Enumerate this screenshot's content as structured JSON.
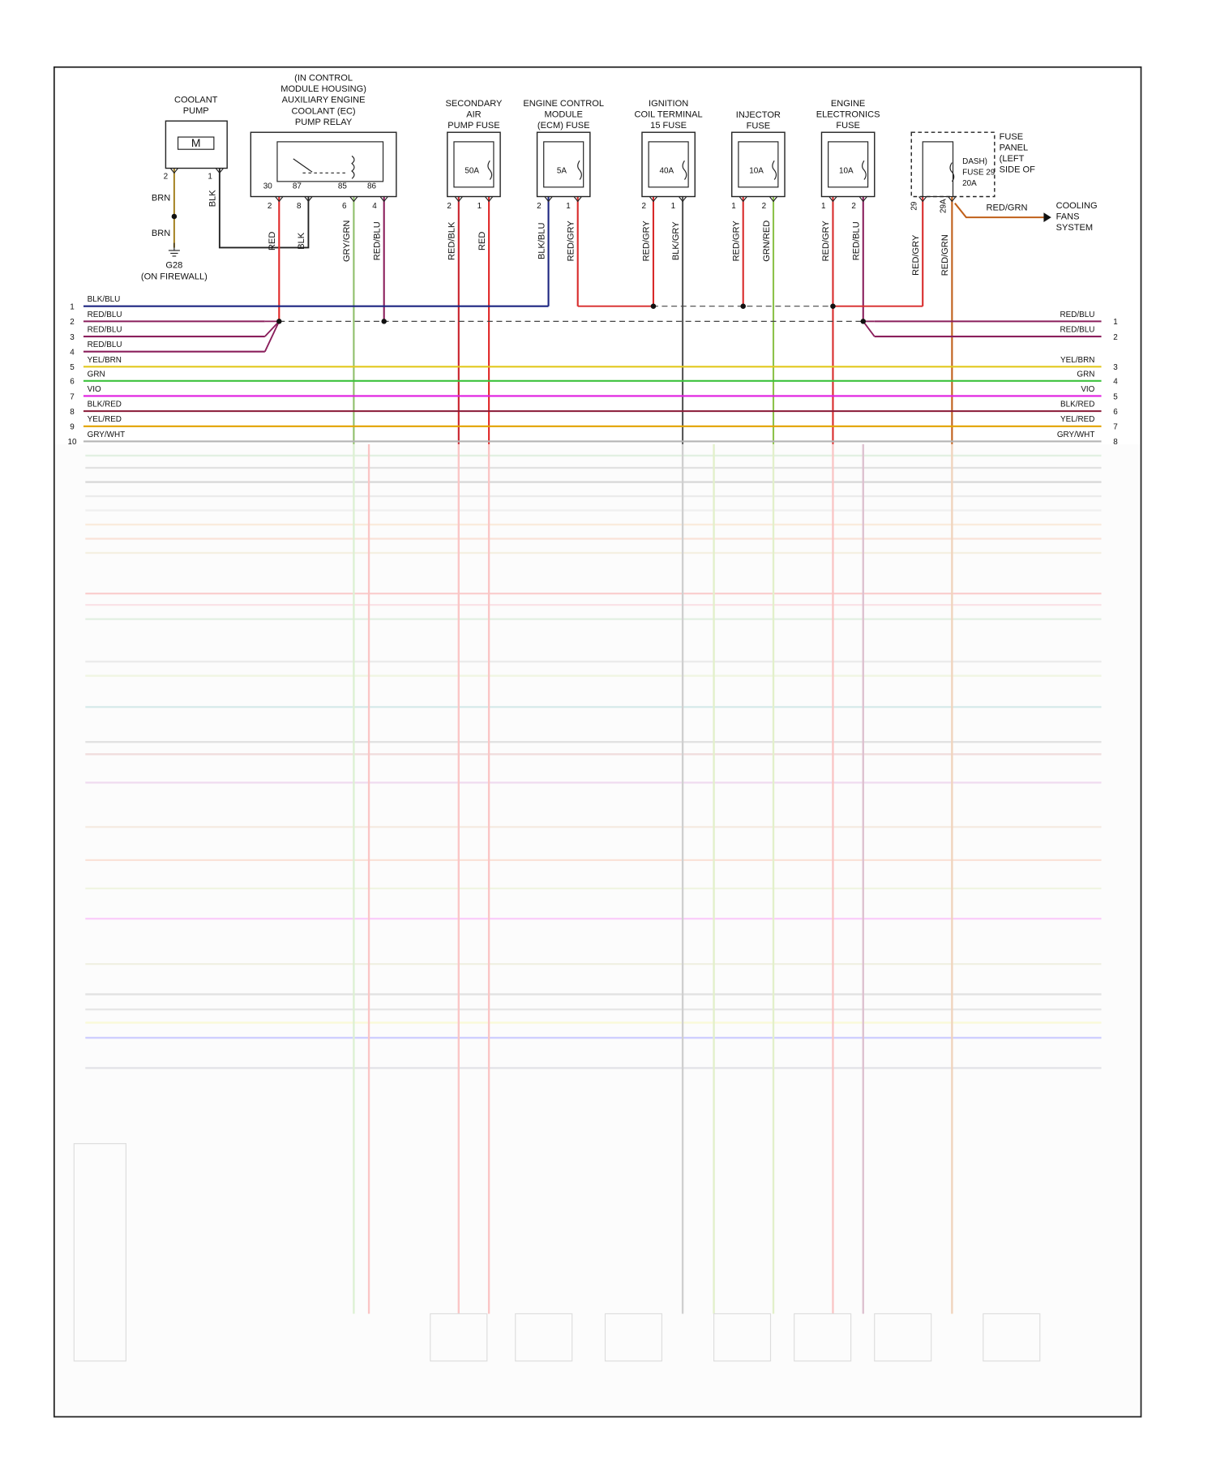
{
  "components": [
    {
      "title": [
        "COOLANT",
        "PUMP"
      ],
      "symbol": "M",
      "pins": [
        "2",
        "1"
      ],
      "wires": [
        {
          "label": "BRN",
          "color": "#a8862a"
        },
        {
          "label": "BLK",
          "color": "#222222"
        }
      ],
      "extra_label": "BRN",
      "ground": [
        "G28",
        "(ON FIREWALL)"
      ]
    },
    {
      "title": [
        "(IN CONTROL",
        "MODULE HOUSING)",
        "AUXILIARY ENGINE",
        "COOLANT (EC)",
        "PUMP RELAY"
      ],
      "terminals": [
        "30",
        "87",
        "85",
        "86"
      ],
      "pins": [
        "2",
        "8",
        "6",
        "4"
      ],
      "wires": [
        {
          "label": "RED",
          "color": "#e02828"
        },
        {
          "label": "BLK",
          "color": "#222222"
        },
        {
          "label": "GRY/GRN",
          "color": "#8fbf6a"
        },
        {
          "label": "RED/BLU",
          "color": "#8a1f5c"
        }
      ]
    },
    {
      "title": [
        "SECONDARY",
        "AIR",
        "PUMP FUSE"
      ],
      "rating": "50A",
      "pins": [
        "2",
        "1"
      ],
      "wires": [
        {
          "label": "RED/BLK",
          "color": "#c8202a"
        },
        {
          "label": "RED",
          "color": "#e02828"
        }
      ]
    },
    {
      "title": [
        "ENGINE CONTROL",
        "MODULE",
        "(ECM) FUSE"
      ],
      "rating": "5A",
      "pins": [
        "2",
        "1"
      ],
      "wires": [
        {
          "label": "BLK/BLU",
          "color": "#1c2580"
        },
        {
          "label": "RED/GRY",
          "color": "#d82a2a"
        }
      ]
    },
    {
      "title": [
        "IGNITION",
        "COIL TERMINAL",
        "15 FUSE"
      ],
      "rating": "40A",
      "pins": [
        "2",
        "1"
      ],
      "wires": [
        {
          "label": "RED/GRY",
          "color": "#d82a2a"
        },
        {
          "label": "BLK/GRY",
          "color": "#555555"
        }
      ]
    },
    {
      "title": [
        "INJECTOR",
        "FUSE"
      ],
      "rating": "10A",
      "pins": [
        "1",
        "2"
      ],
      "wires": [
        {
          "label": "RED/GRY",
          "color": "#d82a2a"
        },
        {
          "label": "GRN/RED",
          "color": "#8cc24a"
        }
      ]
    },
    {
      "title": [
        "ENGINE",
        "ELECTRONICS",
        "FUSE"
      ],
      "rating": "10A",
      "pins": [
        "1",
        "2"
      ],
      "wires": [
        {
          "label": "RED/GRY",
          "color": "#d82a2a"
        },
        {
          "label": "RED/BLU",
          "color": "#8a1f5c"
        }
      ]
    },
    {
      "title": [
        "FUSE",
        "PANEL",
        "(LEFT",
        "SIDE OF"
      ],
      "inner": [
        "DASH)",
        "FUSE 29",
        "20A"
      ],
      "pins": [
        "29",
        "29A"
      ],
      "wires": [
        {
          "label": "RED/GRY",
          "color": "#d82a2a"
        },
        {
          "label": "RED/GRN",
          "color": "#c0601a"
        }
      ],
      "output": {
        "label": "RED/GRN",
        "target": [
          "COOLING",
          "FANS",
          "SYSTEM"
        ]
      }
    }
  ],
  "connector_left": [
    {
      "pin": "1",
      "wire": "BLK/BLU",
      "color": "#1c2580"
    },
    {
      "pin": "2",
      "wire": "RED/BLU",
      "color": "#8a1f5c"
    },
    {
      "pin": "3",
      "wire": "RED/BLU",
      "color": "#8a1f5c"
    },
    {
      "pin": "4",
      "wire": "RED/BLU",
      "color": "#8a1f5c"
    },
    {
      "pin": "5",
      "wire": "YEL/BRN",
      "color": "#e2c81e"
    },
    {
      "pin": "6",
      "wire": "GRN",
      "color": "#3cc23c"
    },
    {
      "pin": "7",
      "wire": "VIO",
      "color": "#e01ee0"
    },
    {
      "pin": "8",
      "wire": "BLK/RED",
      "color": "#8a1a36"
    },
    {
      "pin": "9",
      "wire": "YEL/RED",
      "color": "#e2a200"
    },
    {
      "pin": "10",
      "wire": "GRY/WHT",
      "color": "#b4b4b4"
    }
  ],
  "connector_right": [
    {
      "pin": "1",
      "wire": "RED/BLU",
      "color": "#8a1f5c"
    },
    {
      "pin": "2",
      "wire": "RED/BLU",
      "color": "#8a1f5c"
    },
    {
      "pin": "3",
      "wire": "YEL/BRN",
      "color": "#e2c81e"
    },
    {
      "pin": "4",
      "wire": "GRN",
      "color": "#3cc23c"
    },
    {
      "pin": "5",
      "wire": "VIO",
      "color": "#e01ee0"
    },
    {
      "pin": "6",
      "wire": "BLK/RED",
      "color": "#8a1a36"
    },
    {
      "pin": "7",
      "wire": "YEL/RED",
      "color": "#e2a200"
    },
    {
      "pin": "8",
      "wire": "GRY/WHT",
      "color": "#b4b4b4"
    }
  ]
}
